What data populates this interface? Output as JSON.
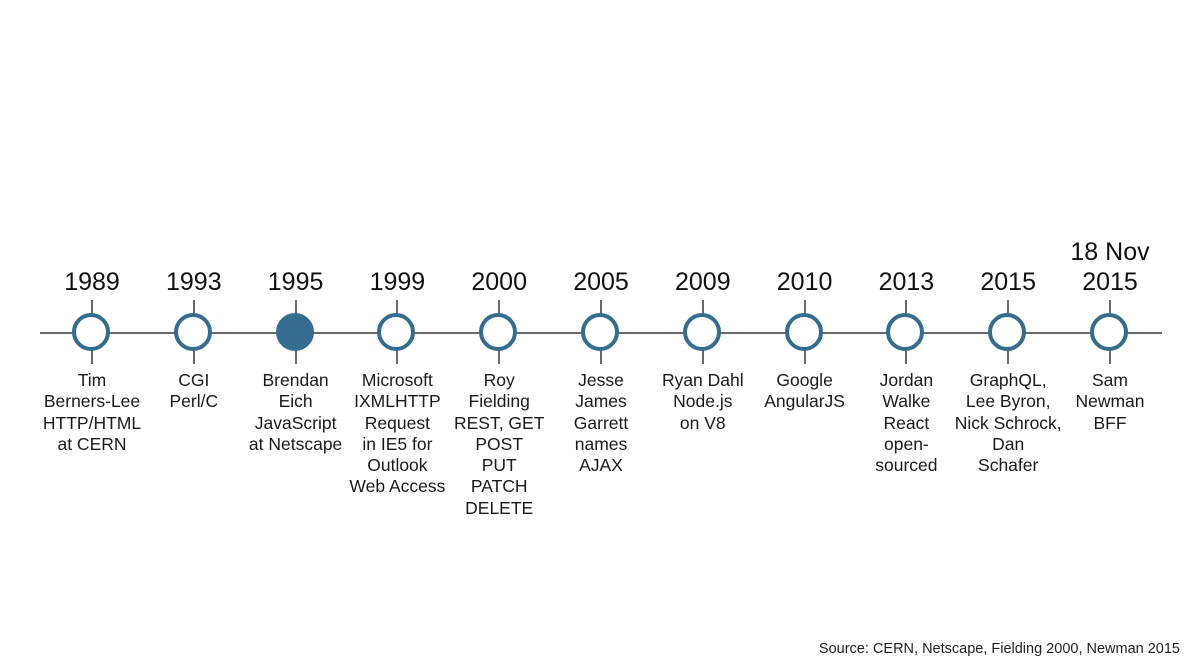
{
  "events": [
    {
      "year": "1989",
      "text": "Tim\nBerners-Lee\nHTTP/HTML\nat CERN",
      "highlighted": false
    },
    {
      "year": "1993",
      "text": "CGI\nPerl/C",
      "highlighted": false
    },
    {
      "year": "1995",
      "text": "Brendan\nEich\nJavaScript\nat Netscape",
      "highlighted": true
    },
    {
      "year": "1999",
      "text": "Microsoft\nIXMLHTTP\nRequest\nin IE5 for\nOutlook\nWeb Access",
      "highlighted": false
    },
    {
      "year": "2000",
      "text": "Roy\nFielding\nREST, GET\nPOST\nPUT\nPATCH\nDELETE",
      "highlighted": false
    },
    {
      "year": "2005",
      "text": "Jesse\nJames\nGarrett\nnames\nAJAX",
      "highlighted": false
    },
    {
      "year": "2009",
      "text": "Ryan Dahl\nNode.js\non V8",
      "highlighted": false
    },
    {
      "year": "2010",
      "text": "Google\nAngularJS",
      "highlighted": false
    },
    {
      "year": "2013",
      "text": "Jordan\nWalke\nReact\nopen-\nsourced",
      "highlighted": false
    },
    {
      "year": "2015",
      "text": "GraphQL,\nLee Byron,\nNick Schrock,\nDan\nSchafer",
      "highlighted": false
    },
    {
      "year": "18 Nov\n2015",
      "text": "Sam\nNewman\nBFF",
      "highlighted": false
    }
  ],
  "source": "Source: CERN, Netscape, Fielding 2000, Newman 2015",
  "colors": {
    "node": "#346d8f",
    "line": "#6a6a6a"
  }
}
